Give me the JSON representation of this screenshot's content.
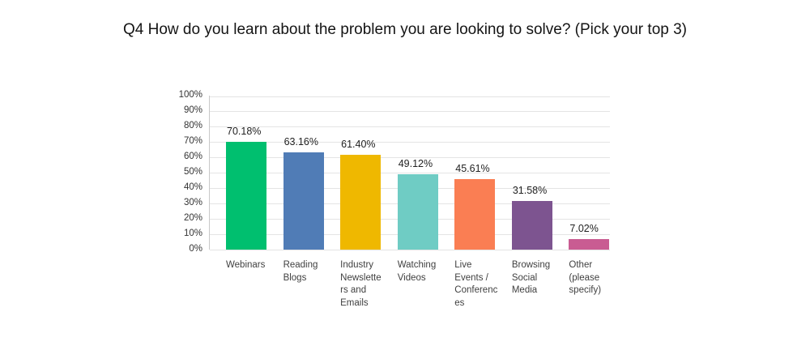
{
  "title": "Q4 How do you learn about the problem you are looking to solve? (Pick your top 3)",
  "chart_data": {
    "type": "bar",
    "title": "Q4 How do you learn about the problem you are looking to solve? (Pick your top 3)",
    "categories": [
      "Webinars",
      "Reading Blogs",
      "Industry Newsletters and Emails",
      "Watching Videos",
      "Live Events / Conferences",
      "Browsing Social Media",
      "Other (please specify)"
    ],
    "values": [
      70.18,
      63.16,
      61.4,
      49.12,
      45.61,
      31.58,
      7.02
    ],
    "value_labels": [
      "70.18%",
      "63.16%",
      "61.40%",
      "49.12%",
      "45.61%",
      "31.58%",
      "7.02%"
    ],
    "bar_colors": [
      "#00BF6F",
      "#507CB6",
      "#EFB800",
      "#6FCCC4",
      "#FA7E53",
      "#7D5490",
      "#C95C92"
    ],
    "category_label_lines": [
      [
        "Webinars"
      ],
      [
        "Reading",
        "Blogs"
      ],
      [
        "Industry",
        "Newslette",
        "rs and",
        "Emails"
      ],
      [
        "Watching",
        "Videos"
      ],
      [
        "Live",
        "Events /",
        "Conferenc",
        "es"
      ],
      [
        "Browsing",
        "Social",
        "Media"
      ],
      [
        "Other",
        "(please",
        "specify)"
      ]
    ],
    "y_ticks": [
      "0%",
      "10%",
      "20%",
      "30%",
      "40%",
      "50%",
      "60%",
      "70%",
      "80%",
      "90%",
      "100%"
    ],
    "ylim": [
      0,
      100
    ],
    "xlabel": "",
    "ylabel": "",
    "grid": true,
    "legend": "none"
  }
}
